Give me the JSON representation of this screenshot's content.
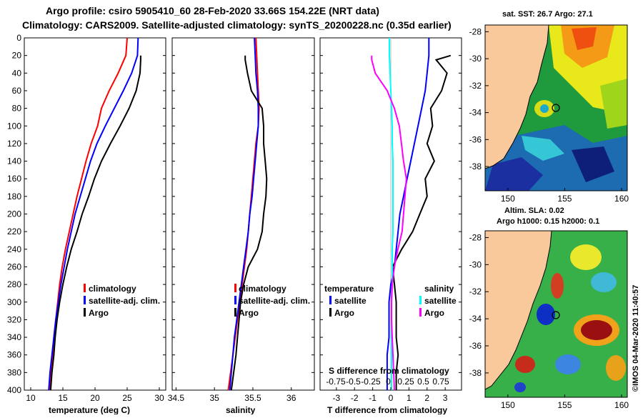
{
  "header": {
    "line1": "Argo profile: csiro 5905410_60 28-Feb-2020 33.66S 154.22E (NRT data)",
    "line2": "Climatology: CARS2009. Satellite-adjusted climatology: synTS_20200228.nc (0.35d earlier)"
  },
  "depth_ticks": [
    "0",
    "20",
    "40",
    "60",
    "80",
    "100",
    "120",
    "140",
    "160",
    "180",
    "200",
    "220",
    "240",
    "260",
    "280",
    "300",
    "320",
    "340",
    "360",
    "380",
    "400"
  ],
  "colors": {
    "climatology": "#ff0000",
    "satellite": "#0000ff",
    "argo": "#000000",
    "sat_salinity": "#00ffff",
    "argo_salinity": "#ff00ff",
    "land": "#f9c99c"
  },
  "chart_data": [
    {
      "type": "line",
      "title": "temperature",
      "xlabel": "temperature (deg C)",
      "ylabel": "depth",
      "xlim": [
        9,
        31
      ],
      "ylim": [
        400,
        0
      ],
      "xticks": [
        "10",
        "15",
        "20",
        "25",
        "30"
      ],
      "series": [
        {
          "name": "climatology",
          "color": "#ff0000",
          "x": [
            25.0,
            24.8,
            23.6,
            22.2,
            21.0,
            20.4,
            19.4,
            18.6,
            17.9,
            17.2,
            16.6,
            16.0,
            15.4,
            14.9,
            14.5,
            14.2,
            13.9,
            13.6,
            13.4,
            13.1,
            12.9
          ],
          "depth": [
            0,
            20,
            40,
            60,
            80,
            100,
            120,
            140,
            160,
            180,
            200,
            220,
            240,
            260,
            280,
            300,
            320,
            340,
            360,
            380,
            400
          ]
        },
        {
          "name": "satellite-adj. clim.",
          "color": "#0000ff",
          "x": [
            26.7,
            26.6,
            25.7,
            24.4,
            23.0,
            21.6,
            20.3,
            19.3,
            18.5,
            17.7,
            16.9,
            16.3,
            15.7,
            15.2,
            14.7,
            14.3,
            13.9,
            13.6,
            13.3,
            13.0,
            12.8
          ],
          "depth": [
            0,
            20,
            40,
            60,
            80,
            100,
            120,
            140,
            160,
            180,
            200,
            220,
            240,
            260,
            280,
            300,
            320,
            340,
            360,
            380,
            400
          ]
        },
        {
          "name": "Argo",
          "color": "#000000",
          "x": [
            27.1,
            27.1,
            27.0,
            26.4,
            25.3,
            23.9,
            22.4,
            21.0,
            19.9,
            19.0,
            18.0,
            17.2,
            16.3,
            15.6,
            15.0,
            14.5,
            14.1,
            13.8,
            13.6,
            13.3,
            13.1
          ],
          "depth": [
            20,
            25,
            40,
            60,
            80,
            100,
            120,
            140,
            160,
            180,
            200,
            220,
            240,
            260,
            280,
            300,
            320,
            340,
            360,
            380,
            400
          ]
        }
      ],
      "legend": [
        "climatology",
        "satellite-adj. clim.",
        "Argo"
      ]
    },
    {
      "type": "line",
      "title": "salinity",
      "xlabel": "salinity",
      "ylabel": "depth",
      "xlim": [
        34.45,
        36.3
      ],
      "ylim": [
        400,
        0
      ],
      "xticks": [
        "34.5",
        "35",
        "35.5",
        "36"
      ],
      "series": [
        {
          "name": "climatology",
          "color": "#ff0000",
          "x": [
            35.54,
            35.55,
            35.56,
            35.57,
            35.58,
            35.57,
            35.54,
            35.52,
            35.5,
            35.48,
            35.46,
            35.44,
            35.42,
            35.39,
            35.36,
            35.33,
            35.3,
            35.27,
            35.24,
            35.21,
            35.18
          ],
          "depth": [
            0,
            20,
            40,
            60,
            80,
            100,
            120,
            140,
            160,
            180,
            200,
            220,
            240,
            260,
            280,
            300,
            320,
            340,
            360,
            380,
            400
          ]
        },
        {
          "name": "satellite-adj. clim.",
          "color": "#0000ff",
          "x": [
            35.52,
            35.53,
            35.54,
            35.56,
            35.57,
            35.57,
            35.55,
            35.53,
            35.51,
            35.49,
            35.46,
            35.44,
            35.41,
            35.38,
            35.35,
            35.32,
            35.29,
            35.26,
            35.24,
            35.22,
            35.2
          ],
          "depth": [
            0,
            20,
            40,
            60,
            80,
            100,
            120,
            140,
            160,
            180,
            200,
            220,
            240,
            260,
            280,
            300,
            320,
            340,
            360,
            380,
            400
          ]
        },
        {
          "name": "Argo",
          "color": "#000000",
          "x": [
            35.4,
            35.4,
            35.43,
            35.48,
            35.62,
            35.64,
            35.64,
            35.66,
            35.68,
            35.67,
            35.64,
            35.62,
            35.56,
            35.44,
            35.38,
            35.34,
            35.32,
            35.3,
            35.28,
            35.25,
            35.22
          ],
          "depth": [
            20,
            25,
            40,
            60,
            80,
            100,
            120,
            140,
            160,
            180,
            200,
            220,
            240,
            260,
            280,
            300,
            320,
            340,
            360,
            380,
            400
          ]
        }
      ],
      "legend": [
        "climatology",
        "satellite-adj. clim.",
        "Argo"
      ]
    },
    {
      "type": "line",
      "title": "difference from climatology",
      "xlabel": "T difference from climatology",
      "xlabel2": "S difference from climatology",
      "ylabel": "depth",
      "xlim": [
        -3.9,
        3.9
      ],
      "ylim": [
        400,
        0
      ],
      "xticks": [
        "-3",
        "-2",
        "-1",
        "0",
        "1",
        "2",
        "3"
      ],
      "s_ticks": [
        "-0.75",
        "-0.5",
        "-0.25",
        "0",
        "0.25",
        "0.5",
        "0.75"
      ],
      "series": [
        {
          "name": "temperature satellite",
          "color": "#0000ff",
          "x": [
            2.1,
            2.1,
            2.0,
            1.9,
            1.7,
            1.5,
            1.3,
            1.1,
            0.9,
            0.7,
            0.5,
            0.4,
            0.3,
            0.2,
            0.0,
            -0.1,
            -0.1,
            -0.1,
            -0.2,
            -0.2,
            -0.2
          ],
          "depth": [
            0,
            20,
            40,
            60,
            80,
            100,
            120,
            140,
            160,
            180,
            200,
            220,
            240,
            260,
            280,
            300,
            320,
            340,
            360,
            380,
            400
          ]
        },
        {
          "name": "temperature Argo",
          "color": "#000000",
          "x": [
            3.3,
            2.5,
            3.1,
            2.8,
            2.2,
            2.3,
            2.0,
            2.4,
            1.9,
            2.0,
            1.6,
            1.2,
            0.6,
            0.1,
            0.2,
            0.3,
            0.3,
            0.3,
            0.4,
            0.3,
            0.3
          ],
          "depth": [
            20,
            25,
            40,
            60,
            80,
            100,
            120,
            140,
            160,
            180,
            200,
            220,
            240,
            260,
            280,
            300,
            320,
            340,
            360,
            380,
            400
          ]
        },
        {
          "name": "salinity satellite",
          "color": "#00ffff",
          "x": [
            -0.02,
            -0.02,
            -0.01,
            0.0,
            0.01,
            0.02,
            0.02,
            0.03,
            0.03,
            0.03,
            0.03,
            0.03,
            0.02,
            0.02,
            0.02,
            0.01,
            0.01,
            0.01,
            0.01,
            0.01,
            0.01
          ],
          "depth": [
            0,
            20,
            40,
            60,
            80,
            100,
            120,
            140,
            160,
            180,
            200,
            220,
            240,
            260,
            280,
            300,
            320,
            340,
            360,
            380,
            400
          ]
        },
        {
          "name": "salinity Argo",
          "color": "#ff00ff",
          "x": [
            -0.27,
            -0.27,
            -0.22,
            -0.05,
            0.05,
            0.12,
            0.15,
            0.18,
            0.22,
            0.2,
            0.18,
            0.16,
            0.1,
            0.05,
            0.02,
            0.01,
            0.01,
            0.02,
            0.03,
            0.04,
            0.05
          ],
          "depth": [
            20,
            25,
            40,
            60,
            80,
            100,
            120,
            140,
            160,
            180,
            200,
            220,
            240,
            260,
            280,
            300,
            320,
            340,
            360,
            380,
            400
          ]
        }
      ],
      "legend": {
        "temperature": "temperature",
        "salinity": "salinity",
        "satellite": "satellite",
        "argo": "Argo"
      }
    }
  ],
  "maps": {
    "sst": {
      "title": "sat. SST: 26.7 Argo: 27.1",
      "lat_ticks": [
        "-28",
        "-30",
        "-32",
        "-34",
        "-36",
        "-38"
      ],
      "lon_ticks": [
        "150",
        "155",
        "160"
      ]
    },
    "sla": {
      "title1": "Altim. SLA: 0.02",
      "title2": "Argo h1000: 0.15 h2000: 0.1",
      "lat_ticks": [
        "-28",
        "-30",
        "-32",
        "-34",
        "-36",
        "-38"
      ],
      "lon_ticks": [
        "150",
        "155",
        "160"
      ]
    },
    "float_position": {
      "lon": 154.22,
      "lat": -33.66
    },
    "lon_range": [
      148,
      160.5
    ],
    "lat_range": [
      -39.8,
      -27.5
    ]
  },
  "footer": {
    "stamp": "©IMOS 04-Mar-2020 11:40:57"
  }
}
